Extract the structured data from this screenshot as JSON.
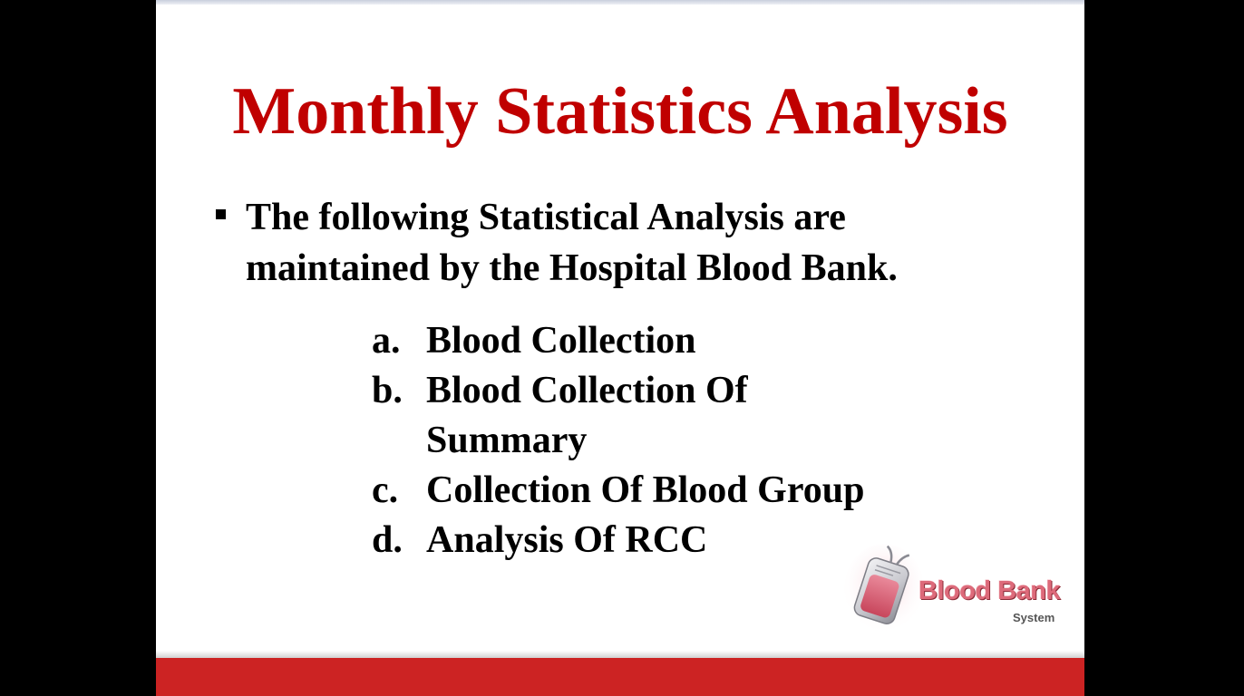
{
  "slide": {
    "title": "Monthly Statistics Analysis",
    "bullet": {
      "text": "The following Statistical Analysis are maintained by the Hospital Blood Bank."
    },
    "items": [
      {
        "marker": "a.",
        "text": "Blood Collection"
      },
      {
        "marker": "b.",
        "text": "Blood Collection Of Summary"
      },
      {
        "marker": "c.",
        "text": "Collection Of Blood Group"
      },
      {
        "marker": "d.",
        "text": "Analysis Of RCC"
      }
    ],
    "logo": {
      "name": "Blood Bank",
      "subtitle": "System",
      "icon": "blood-bag-icon"
    }
  },
  "colors": {
    "title": "#c00000",
    "band": "#cc2323",
    "text": "#000000",
    "letterbox": "#000000",
    "slide_background": "#ffffff"
  }
}
